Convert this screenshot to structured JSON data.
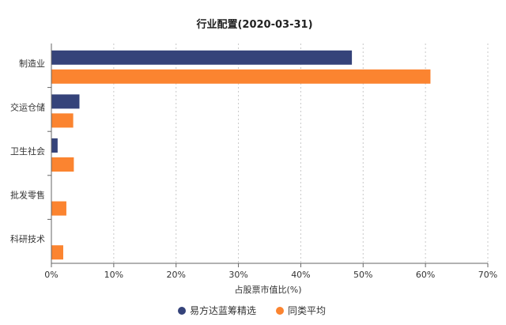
{
  "chart_data": {
    "type": "bar",
    "orientation": "horizontal",
    "title": "行业配置(2020-03-31)",
    "xlabel": "占股票市值比(%)",
    "ylabel": "",
    "xlim": [
      0,
      70
    ],
    "x_ticks": [
      "0%",
      "10%",
      "20%",
      "30%",
      "40%",
      "50%",
      "60%",
      "70%"
    ],
    "grid": "vertical-dashed",
    "legend_position": "bottom",
    "categories": [
      "制造业",
      "交运仓储",
      "卫生社会",
      "批发零售",
      "科研技术"
    ],
    "series": [
      {
        "name": "易方达蓝筹精选",
        "color": "#35437a",
        "values": [
          48.2,
          4.5,
          1.0,
          0.0,
          0.0
        ]
      },
      {
        "name": "同类平均",
        "color": "#fb8430",
        "values": [
          60.8,
          3.5,
          3.6,
          2.4,
          1.9
        ]
      }
    ]
  }
}
